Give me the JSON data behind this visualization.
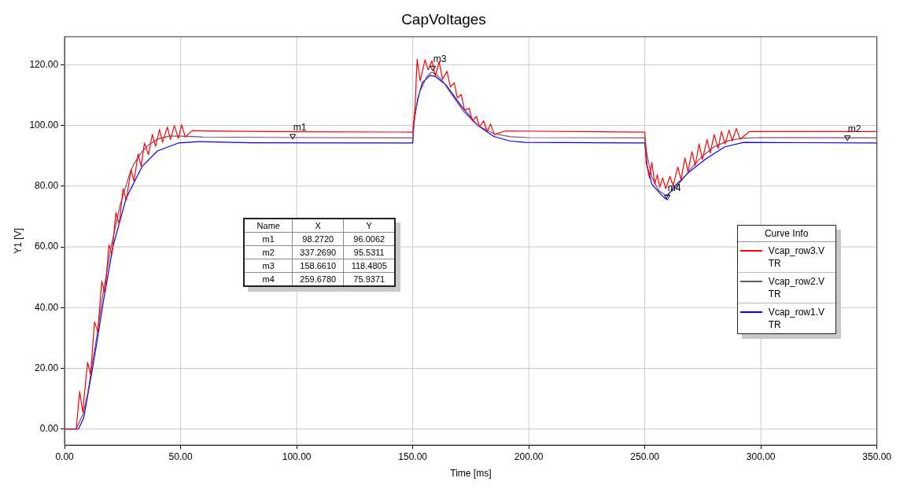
{
  "chart_data": {
    "type": "line",
    "title": "CapVoltages",
    "xlabel": "Time [ms]",
    "ylabel": "Y1 [V]",
    "legend_title": "Curve Info",
    "legend": "right",
    "grid": true,
    "marker": "none",
    "line_style": "solid",
    "xlim": [
      0,
      350
    ],
    "ylim": [
      -5.3,
      129.2
    ],
    "xticks": [
      {
        "value": 0,
        "label": "0.00"
      },
      {
        "value": 50,
        "label": "50.00"
      },
      {
        "value": 100,
        "label": "100.00"
      },
      {
        "value": 150,
        "label": "150.00"
      },
      {
        "value": 200,
        "label": "200.00"
      },
      {
        "value": 250,
        "label": "250.00"
      },
      {
        "value": 300,
        "label": "300.00"
      },
      {
        "value": 350,
        "label": "350.00"
      }
    ],
    "yticks": [
      {
        "value": 0,
        "label": "0.00"
      },
      {
        "value": 20,
        "label": "20.00"
      },
      {
        "value": 40,
        "label": "40.00"
      },
      {
        "value": 60,
        "label": "60.00"
      },
      {
        "value": 80,
        "label": "80.00"
      },
      {
        "value": 100,
        "label": "100.00"
      },
      {
        "value": 120,
        "label": "120.00"
      }
    ],
    "annotations": [
      "Name",
      "X",
      "Y",
      "m1",
      "98.2720",
      "96.0062",
      "m2",
      "337.2690",
      "95.5311",
      "m3",
      "158.6610",
      "118.4805",
      "m4",
      "259.6780",
      "75.9371",
      {
        "text": "m1",
        "x": 98.272,
        "y": 96.0062
      },
      {
        "text": "m2",
        "x": 337.269,
        "y": 95.5311
      },
      {
        "text": "m3",
        "x": 158.661,
        "y": 118.4805
      },
      {
        "text": "m4",
        "x": 259.678,
        "y": 75.9371
      }
    ],
    "series": [
      {
        "name": "Vcap_row3.V\nTR",
        "color": "#ff0000",
        "x": [
          0,
          5,
          6.5,
          7.8,
          9.9,
          11.2,
          12.9,
          14.3,
          16,
          17.4,
          19.1,
          20.4,
          22.1,
          23.5,
          25.2,
          26.6,
          28.6,
          29.9,
          31.7,
          33,
          34.4,
          36.1,
          37.8,
          39.2,
          40.9,
          42.2,
          44.3,
          45.6,
          47.3,
          49,
          50.4,
          52,
          55,
          70,
          100,
          150,
          151,
          151.9,
          153.2,
          155.3,
          156.6,
          158.3,
          159.7,
          161.4,
          162.8,
          164.8,
          166.2,
          167.9,
          169.2,
          170.9,
          172.3,
          174.3,
          175.7,
          177.4,
          178.8,
          180.5,
          182.1,
          183.5,
          185.2,
          190,
          250,
          250.6,
          252,
          253,
          254.3,
          255.4,
          256.4,
          257.7,
          259,
          260.8,
          262.2,
          264.2,
          265.6,
          267.3,
          268.6,
          270.3,
          271.7,
          273.4,
          274.8,
          276.8,
          278.2,
          279.9,
          281.6,
          283,
          284.6,
          286.3,
          287.7,
          289.4,
          291.1,
          295,
          350
        ],
        "values": [
          0,
          0,
          12.4,
          5.6,
          22,
          18,
          35.3,
          32,
          48.7,
          44.7,
          60.7,
          57.6,
          71.3,
          67.5,
          79.2,
          75.4,
          85.5,
          81.7,
          90.6,
          86.5,
          94.2,
          90.4,
          97,
          93.1,
          98.7,
          94.4,
          99.5,
          95.4,
          100,
          95.7,
          100.2,
          96.2,
          98.3,
          98.1,
          97.9,
          97.8,
          106,
          121.8,
          114.7,
          121.6,
          118.3,
          121.3,
          116.2,
          121,
          115.2,
          117.8,
          112.7,
          114,
          109.1,
          110.2,
          105.1,
          105.6,
          101.5,
          103,
          99.5,
          101.5,
          98,
          100.5,
          97,
          98.2,
          97.8,
          87.8,
          82.7,
          87.8,
          80.7,
          83.8,
          79.7,
          82.7,
          79.2,
          83.2,
          80.2,
          86.3,
          82.2,
          89.3,
          84.8,
          91.4,
          86.8,
          93.9,
          88.8,
          95.4,
          90.9,
          97,
          92.4,
          98,
          93.9,
          98.5,
          94.9,
          99,
          95.4,
          98,
          98
        ]
      },
      {
        "name": "Vcap_row2.V\nTR",
        "color": "#7b4a6a",
        "x": [
          0,
          5,
          8,
          10,
          12,
          14,
          16,
          18,
          20,
          22,
          24,
          26,
          28,
          30,
          33,
          36,
          40,
          45,
          50,
          60,
          100,
          150,
          151,
          153,
          156,
          158,
          160,
          163,
          167,
          172,
          178,
          185,
          192,
          200,
          250,
          251,
          253,
          256,
          259,
          262,
          266,
          270,
          275,
          280,
          286,
          292,
          300,
          350
        ],
        "values": [
          0,
          0,
          5,
          12,
          22,
          31,
          42,
          51,
          60,
          67,
          74,
          79,
          84,
          87.5,
          91,
          93.5,
          95.5,
          96.5,
          96.5,
          96.2,
          96,
          95.9,
          104,
          111,
          116,
          117.5,
          117,
          114.5,
          110,
          104.5,
          100,
          97.3,
          96.3,
          96,
          95.9,
          90,
          83,
          78.5,
          77,
          78.5,
          82,
          86,
          90,
          93,
          95,
          95.8,
          96,
          95.9
        ]
      },
      {
        "name": "Vcap_row1.V\nTR",
        "color": "#0000ff",
        "x": [
          0,
          6,
          8.2,
          11.6,
          14,
          16.7,
          20.8,
          26.5,
          33.4,
          40,
          49,
          58,
          80,
          150,
          150.5,
          152.2,
          154.2,
          157.6,
          160,
          164.5,
          171.3,
          178,
          184.9,
          191.7,
          198.5,
          250,
          251,
          253,
          257,
          259,
          262.5,
          269.3,
          276,
          284.3,
          292.5,
          350
        ],
        "values": [
          0,
          0,
          3.6,
          18,
          29,
          42,
          60,
          76,
          86.5,
          91.6,
          94.2,
          94.7,
          94.3,
          94.2,
          101,
          109,
          114.2,
          116.5,
          116,
          113.2,
          106,
          100,
          96.4,
          94.9,
          94.4,
          94.2,
          86.8,
          80.7,
          77.2,
          75.8,
          79.7,
          84.8,
          88.8,
          92.9,
          94.4,
          94.2
        ]
      }
    ]
  }
}
